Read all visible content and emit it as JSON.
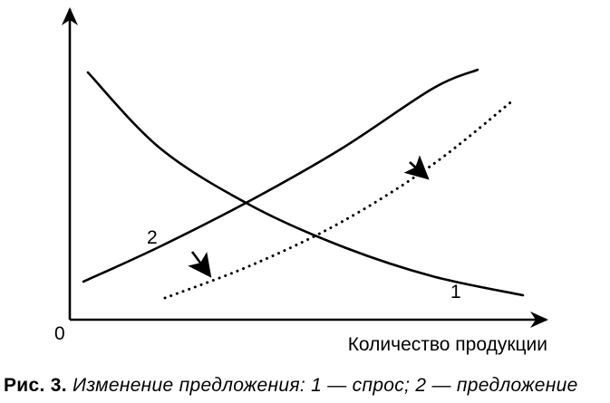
{
  "chart_data": {
    "type": "line",
    "title": "",
    "xlabel": "Количество продукции",
    "ylabel": "",
    "origin_label": "0",
    "xlim": [
      0,
      10
    ],
    "ylim": [
      0,
      10
    ],
    "grid": false,
    "series": [
      {
        "name": "1",
        "style": "solid",
        "x": [
          0.4,
          2.0,
          4.0,
          6.0,
          8.0,
          10.0
        ],
        "y": [
          9.1,
          6.3,
          4.2,
          2.7,
          1.6,
          0.9
        ]
      },
      {
        "name": "2",
        "style": "solid",
        "x": [
          0.3,
          2.0,
          4.0,
          6.0,
          8.0,
          9.0
        ],
        "y": [
          1.4,
          2.7,
          4.4,
          6.3,
          8.5,
          9.2
        ]
      },
      {
        "name": "",
        "style": "dotted",
        "x": [
          2.1,
          4.0,
          6.0,
          8.0,
          9.8
        ],
        "y": [
          0.8,
          2.0,
          3.6,
          5.7,
          8.1
        ]
      }
    ],
    "annotations": [
      {
        "text": "1",
        "x": 8.4,
        "y": 0.8
      },
      {
        "text": "2",
        "x": 1.7,
        "y": 2.8
      }
    ],
    "shift_arrows": [
      {
        "from": [
          2.7,
          2.5
        ],
        "to": [
          3.1,
          1.6
        ]
      },
      {
        "from": [
          7.5,
          5.8
        ],
        "to": [
          7.9,
          5.2
        ]
      }
    ]
  },
  "caption": {
    "lead": "Рис. 3.",
    "text": " Изменение предложения: 1 — спрос; 2 — предложение"
  }
}
